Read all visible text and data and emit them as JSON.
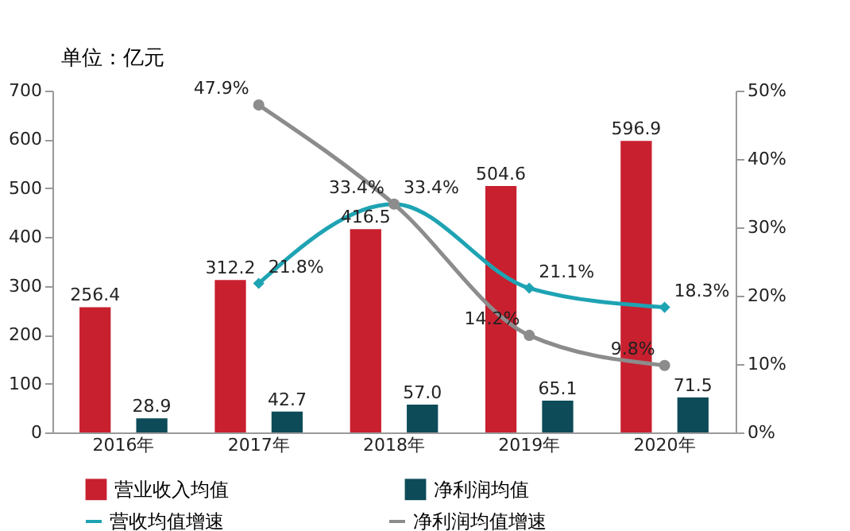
{
  "chart_data": {
    "type": "bar",
    "ylabel": "单位：亿元",
    "categories": [
      "2016年",
      "2017年",
      "2018年",
      "2019年",
      "2020年"
    ],
    "series": [
      {
        "name": "营业收入均值",
        "color": "#c8202f",
        "values": [
          256.4,
          312.2,
          416.5,
          504.6,
          596.9
        ],
        "value_labels": [
          "256.4",
          "312.2",
          "416.5",
          "504.6",
          "596.9"
        ]
      },
      {
        "name": "净利润均值",
        "color": "#0e4b58",
        "values": [
          28.9,
          42.7,
          57.0,
          65.1,
          71.5
        ],
        "value_labels": [
          "28.9",
          "42.7",
          "57.0",
          "65.1",
          "71.5"
        ]
      },
      {
        "name": "营收均值增速",
        "type": "line",
        "axis": "y2",
        "marker": "diamond",
        "color": "#1ea3b3",
        "values": [
          null,
          21.8,
          33.4,
          21.1,
          18.3
        ],
        "value_labels": [
          null,
          "21.8%",
          "33.4%",
          "21.1%",
          "18.3%"
        ]
      },
      {
        "name": "净利润均值增速",
        "type": "line",
        "axis": "y2",
        "marker": "circle",
        "color": "#8c8c8c",
        "values": [
          null,
          47.9,
          33.4,
          14.2,
          9.8
        ],
        "value_labels": [
          null,
          "47.9%",
          "33.4%",
          "14.2%",
          "9.8%"
        ]
      }
    ],
    "ylim": [
      0,
      700
    ],
    "yticks": [
      0,
      100,
      200,
      300,
      400,
      500,
      600,
      700
    ],
    "y2lim": [
      0,
      50
    ],
    "y2ticks": [
      {
        "value": 0,
        "label": "0%"
      },
      {
        "value": 10,
        "label": "10%"
      },
      {
        "value": 20,
        "label": "20%"
      },
      {
        "value": 30,
        "label": "30%"
      },
      {
        "value": 40,
        "label": "40%"
      },
      {
        "value": 50,
        "label": "50%"
      }
    ],
    "grid": false,
    "legend": "bottom"
  }
}
